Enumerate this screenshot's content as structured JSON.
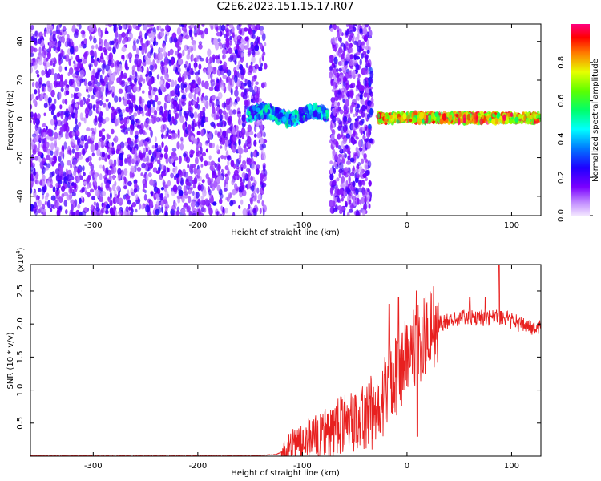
{
  "title": "C2E6.2023.151.15.17.R07",
  "colors": {
    "spectrogram_low": "#8b00ff",
    "spectrogram_mid": "#00ffff",
    "spectrogram_high": "#ff0055",
    "snr_line": "#e8201f"
  },
  "chart_data": [
    {
      "type": "heatmap",
      "title": "C2E6.2023.151.15.17.R07",
      "xlabel": "Height of straight line (km)",
      "ylabel": "Frequency (Hz)",
      "xlim": [
        -360,
        128
      ],
      "ylim": [
        -50,
        49
      ],
      "x_ticks": [
        -300,
        -200,
        -100,
        0,
        100
      ],
      "y_ticks": [
        -40,
        -20,
        0,
        20,
        40
      ],
      "colorbar": {
        "label": "Normalized spectral amplitude",
        "range": [
          0.0,
          1.0
        ],
        "ticks": [
          "0.0",
          "0.2",
          "0.4",
          "0.6",
          "0.8"
        ],
        "tick_values": [
          0.0,
          0.2,
          0.4,
          0.6,
          0.8
        ]
      },
      "regions": [
        {
          "name": "broadband noise",
          "x": [
            -360,
            -135
          ],
          "freq": [
            -50,
            49
          ],
          "amplitude": 0.1
        },
        {
          "name": "narrow echo",
          "x": [
            -153,
            -76
          ],
          "freq": [
            -4,
            8
          ],
          "amplitude": 0.35
        },
        {
          "name": "noise burst",
          "x": [
            -73,
            -35
          ],
          "freq": [
            -50,
            49
          ],
          "amplitude": 0.15
        },
        {
          "name": "vertical streak",
          "x": [
            -36,
            -33
          ],
          "freq": [
            -12,
            30
          ],
          "amplitude": 0.2
        },
        {
          "name": "strong echo",
          "x": [
            -28,
            128
          ],
          "freq": [
            -2,
            3
          ],
          "amplitude": 0.9
        }
      ]
    },
    {
      "type": "line",
      "xlabel": "Height of straight line (km)",
      "ylabel": "SNR (10 * v/v)",
      "y_multiplier": "(x10",
      "y_multiplier_exp": "4",
      "y_multiplier_close": ")",
      "xlim": [
        -360,
        128
      ],
      "ylim": [
        0,
        2.9
      ],
      "x_ticks": [
        -300,
        -200,
        -100,
        0,
        100
      ],
      "y_ticks": [
        0.5,
        1.0,
        1.5,
        2.0,
        2.5
      ],
      "series": [
        {
          "x": [
            -360,
            -300,
            -250,
            -200,
            -150,
            -125,
            -118,
            -110,
            -100,
            -90,
            -80,
            -70,
            -60,
            -50,
            -40,
            -30,
            -25,
            -20,
            -15,
            -10,
            -5,
            0,
            10,
            20,
            30,
            40,
            50,
            60,
            70,
            80,
            90,
            100,
            110,
            120,
            128
          ],
          "y": [
            0.0,
            0.0,
            0.0,
            0.0,
            0.0,
            0.02,
            0.08,
            0.15,
            0.22,
            0.28,
            0.35,
            0.42,
            0.48,
            0.55,
            0.62,
            0.72,
            0.85,
            1.0,
            1.12,
            1.2,
            1.35,
            1.5,
            1.7,
            1.88,
            2.0,
            2.05,
            2.08,
            2.1,
            2.1,
            2.08,
            2.12,
            2.05,
            1.98,
            1.95,
            1.93
          ],
          "spikes": [
            [
              -17,
              2.3
            ],
            [
              -8,
              2.4
            ],
            [
              9,
              2.5
            ],
            [
              10,
              0.3
            ],
            [
              88,
              2.9
            ],
            [
              75,
              2.4
            ],
            [
              60,
              2.4
            ]
          ]
        }
      ]
    }
  ]
}
